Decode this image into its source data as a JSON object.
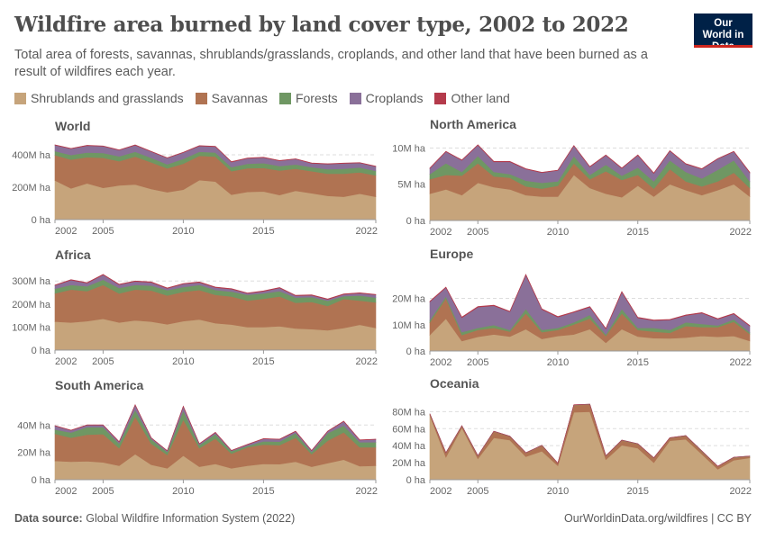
{
  "header": {
    "title": "Wildfire area burned by land cover type, 2002 to 2022",
    "subtitle": "Total area of forests, savannas, shrublands/grasslands, croplands, and other land that have been burned as a result of wildfires each year.",
    "logo_text": "Our World in Data"
  },
  "legend": [
    {
      "label": "Shrublands and grasslands",
      "color": "#c6a47b"
    },
    {
      "label": "Savannas",
      "color": "#b07352"
    },
    {
      "label": "Forests",
      "color": "#6f9763"
    },
    {
      "label": "Croplands",
      "color": "#8a7099"
    },
    {
      "label": "Other land",
      "color": "#b43a4b"
    }
  ],
  "footer": {
    "source_label": "Data source:",
    "source_text": "Global Wildfire Information System (2022)",
    "credit": "OurWorldinData.org/wildfires | CC BY"
  },
  "chart_data": [
    {
      "type": "area",
      "stacked": true,
      "title": "World",
      "x": [
        2002,
        2003,
        2004,
        2005,
        2006,
        2007,
        2008,
        2009,
        2010,
        2011,
        2012,
        2013,
        2014,
        2015,
        2016,
        2017,
        2018,
        2019,
        2020,
        2021,
        2022
      ],
      "xticks": [
        "2002",
        "2005",
        "2010",
        "2015",
        "2022"
      ],
      "yticks": [
        {
          "value": 0,
          "label": "0 ha"
        },
        {
          "value": 200,
          "label": "200M ha"
        },
        {
          "value": 400,
          "label": "400M ha"
        }
      ],
      "unit": "million hectares",
      "ylim": [
        0,
        467
      ],
      "grid": true,
      "series": [
        {
          "name": "Shrublands and grasslands",
          "values": [
            242,
            193,
            224,
            196,
            211,
            217,
            189,
            169,
            185,
            244,
            235,
            154,
            171,
            174,
            152,
            178,
            163,
            147,
            141,
            160,
            141
          ]
        },
        {
          "name": "Savannas",
          "values": [
            156,
            178,
            161,
            186,
            150,
            172,
            165,
            148,
            160,
            150,
            154,
            145,
            146,
            145,
            151,
            136,
            136,
            137,
            143,
            132,
            132
          ]
        },
        {
          "name": "Forests",
          "values": [
            25,
            28,
            30,
            30,
            30,
            30,
            28,
            25,
            30,
            25,
            25,
            25,
            28,
            30,
            28,
            27,
            25,
            28,
            30,
            30,
            28
          ]
        },
        {
          "name": "Croplands",
          "values": [
            37,
            39,
            42,
            41,
            38,
            41,
            38,
            38,
            39,
            36,
            37,
            32,
            33,
            34,
            32,
            33,
            24,
            31,
            33,
            28,
            27
          ]
        },
        {
          "name": "Other land",
          "values": [
            2,
            2,
            2,
            2,
            2,
            2,
            2,
            2,
            2,
            2,
            2,
            2,
            2,
            2,
            2,
            2,
            2,
            2,
            2,
            2,
            2
          ]
        }
      ]
    },
    {
      "type": "area",
      "stacked": true,
      "title": "North America",
      "x": [
        2002,
        2003,
        2004,
        2005,
        2006,
        2007,
        2008,
        2009,
        2010,
        2011,
        2012,
        2013,
        2014,
        2015,
        2016,
        2017,
        2018,
        2019,
        2020,
        2021,
        2022
      ],
      "xticks": [
        "2002",
        "2005",
        "2010",
        "2015",
        "2022"
      ],
      "yticks": [
        {
          "value": 0,
          "label": "0 ha"
        },
        {
          "value": 5,
          "label": "5M ha"
        },
        {
          "value": 10,
          "label": "10M ha"
        }
      ],
      "unit": "million hectares",
      "ylim": [
        0,
        10.8
      ],
      "grid": true,
      "series": [
        {
          "name": "Shrublands and grasslands",
          "values": [
            3.7,
            4.3,
            3.5,
            5.2,
            4.6,
            4.3,
            3.5,
            3.3,
            3.3,
            6.3,
            4.5,
            3.7,
            3.2,
            4.8,
            3.3,
            5.0,
            4.2,
            3.5,
            4.2,
            5.0,
            3.3
          ]
        },
        {
          "name": "Savannas",
          "values": [
            2.0,
            2.0,
            2.7,
            2.7,
            1.5,
            1.6,
            1.2,
            1.1,
            1.5,
            1.6,
            1.2,
            3.1,
            2.4,
            1.5,
            1.1,
            2.1,
            1.2,
            1.2,
            1.2,
            1.6,
            1.2
          ]
        },
        {
          "name": "Forests",
          "values": [
            0.7,
            1.6,
            0.5,
            1.0,
            0.6,
            0.5,
            0.8,
            0.8,
            0.6,
            1.0,
            0.6,
            0.9,
            0.6,
            1.0,
            1.0,
            1.2,
            1.3,
            1.1,
            1.6,
            1.7,
            0.9
          ]
        },
        {
          "name": "Croplands",
          "values": [
            0.8,
            1.6,
            1.6,
            1.5,
            1.4,
            1.7,
            1.6,
            1.4,
            1.5,
            1.4,
            1.1,
            1.3,
            1.0,
            1.7,
            1.1,
            1.3,
            1.1,
            1.3,
            1.5,
            1.2,
            1.2
          ]
        },
        {
          "name": "Other land",
          "values": [
            0.05,
            0.05,
            0.05,
            0.05,
            0.05,
            0.05,
            0.05,
            0.05,
            0.05,
            0.05,
            0.05,
            0.05,
            0.05,
            0.05,
            0.05,
            0.05,
            0.05,
            0.05,
            0.05,
            0.05,
            0.05
          ]
        }
      ]
    },
    {
      "type": "area",
      "stacked": true,
      "title": "Africa",
      "x": [
        2002,
        2003,
        2004,
        2005,
        2006,
        2007,
        2008,
        2009,
        2010,
        2011,
        2012,
        2013,
        2014,
        2015,
        2016,
        2017,
        2018,
        2019,
        2020,
        2021,
        2022
      ],
      "xticks": [
        "2002",
        "2005",
        "2010",
        "2015",
        "2022"
      ],
      "yticks": [
        {
          "value": 0,
          "label": "0 ha"
        },
        {
          "value": 100,
          "label": "100M ha"
        },
        {
          "value": 200,
          "label": "200M ha"
        },
        {
          "value": 300,
          "label": "300M ha"
        }
      ],
      "unit": "million hectares",
      "ylim": [
        0,
        336
      ],
      "grid": true,
      "series": [
        {
          "name": "Shrublands and grasslands",
          "values": [
            124,
            120,
            126,
            136,
            120,
            129,
            124,
            112,
            126,
            133,
            117,
            111,
            100,
            100,
            104,
            94,
            91,
            86,
            96,
            110,
            96
          ]
        },
        {
          "name": "Savannas",
          "values": [
            122,
            143,
            130,
            147,
            126,
            134,
            135,
            125,
            127,
            128,
            123,
            122,
            115,
            123,
            129,
            111,
            118,
            106,
            126,
            105,
            111
          ]
        },
        {
          "name": "Forests",
          "values": [
            21,
            20,
            21,
            23,
            24,
            20,
            21,
            23,
            21,
            22,
            21,
            21,
            25,
            23,
            23,
            23,
            21,
            22,
            12,
            22,
            21
          ]
        },
        {
          "name": "Croplands",
          "values": [
            14,
            21,
            14,
            21,
            14,
            15,
            14,
            8,
            13,
            11,
            11,
            11,
            6,
            9,
            14,
            8,
            8,
            6,
            8,
            10,
            12
          ]
        },
        {
          "name": "Other land",
          "values": [
            2,
            2,
            2,
            2,
            2,
            2,
            2,
            2,
            2,
            2,
            2,
            2,
            2,
            2,
            2,
            2,
            2,
            2,
            2,
            2,
            2
          ]
        }
      ]
    },
    {
      "type": "area",
      "stacked": true,
      "title": "Europe",
      "x": [
        2002,
        2003,
        2004,
        2005,
        2006,
        2007,
        2008,
        2009,
        2010,
        2011,
        2012,
        2013,
        2014,
        2015,
        2016,
        2017,
        2018,
        2019,
        2020,
        2021,
        2022
      ],
      "xticks": [
        "2002",
        "2005",
        "2010",
        "2015",
        "2022"
      ],
      "yticks": [
        {
          "value": 0,
          "label": "0 ha"
        },
        {
          "value": 10,
          "label": "10M ha"
        },
        {
          "value": 20,
          "label": "20M ha"
        }
      ],
      "unit": "million hectares",
      "ylim": [
        0,
        30.1
      ],
      "grid": true,
      "series": [
        {
          "name": "Shrublands and grasslands",
          "values": [
            6.1,
            12.3,
            3.8,
            5.4,
            6.3,
            5.5,
            8.3,
            4.6,
            5.7,
            6.3,
            8.3,
            3.1,
            8.3,
            5.5,
            4.9,
            4.8,
            5.1,
            5.7,
            5.4,
            5.7,
            3.8
          ]
        },
        {
          "name": "Savannas",
          "values": [
            4.8,
            7.7,
            2.3,
            2.6,
            2.5,
            1.9,
            6.0,
            2.6,
            2.3,
            3.8,
            4.0,
            2.6,
            6.0,
            2.5,
            2.5,
            2.1,
            4.4,
            3.4,
            3.7,
            5.4,
            2.7
          ]
        },
        {
          "name": "Forests",
          "values": [
            0.8,
            0.8,
            1.1,
            0.8,
            1.1,
            0.6,
            1.7,
            0.8,
            0.8,
            0.8,
            1.4,
            0.6,
            1.7,
            0.8,
            1.4,
            1.1,
            1.4,
            1.2,
            0.6,
            0.9,
            0.6
          ]
        },
        {
          "name": "Croplands",
          "values": [
            7.0,
            3.3,
            5.5,
            7.9,
            7.3,
            6.9,
            12.9,
            7.8,
            4.1,
            3.8,
            3.0,
            2.1,
            6.4,
            3.8,
            2.8,
            3.8,
            2.6,
            4.1,
            2.4,
            2.1,
            2.4
          ]
        },
        {
          "name": "Other land",
          "values": [
            0.2,
            0.2,
            0.2,
            0.2,
            0.2,
            0.2,
            0.2,
            0.2,
            0.2,
            0.2,
            0.2,
            0.2,
            0.2,
            0.2,
            0.2,
            0.2,
            0.2,
            0.2,
            0.2,
            0.2,
            0.2
          ]
        }
      ]
    },
    {
      "type": "area",
      "stacked": true,
      "title": "South America",
      "x": [
        2002,
        2003,
        2004,
        2005,
        2006,
        2007,
        2008,
        2009,
        2010,
        2011,
        2012,
        2013,
        2014,
        2015,
        2016,
        2017,
        2018,
        2019,
        2020,
        2021,
        2022
      ],
      "xticks": [
        "2002",
        "2005",
        "2010",
        "2015",
        "2022"
      ],
      "yticks": [
        {
          "value": 0,
          "label": "0 ha"
        },
        {
          "value": 20,
          "label": "20M ha"
        },
        {
          "value": 40,
          "label": "40M ha"
        }
      ],
      "unit": "million hectares",
      "ylim": [
        0,
        56
      ],
      "grid": true,
      "series": [
        {
          "name": "Shrublands and grasslands",
          "values": [
            13.8,
            13.2,
            13.6,
            12.7,
            10.3,
            18.7,
            11.0,
            8.4,
            17.6,
            9.5,
            11.6,
            8.4,
            10.3,
            11.6,
            11.4,
            13.2,
            9.5,
            12.1,
            14.7,
            9.9,
            10.3
          ]
        },
        {
          "name": "Savannas",
          "values": [
            19.8,
            17.6,
            19.4,
            20.7,
            12.8,
            27.5,
            15.4,
            9.8,
            26.4,
            13.6,
            18.5,
            10.7,
            13.4,
            14.1,
            13.9,
            17.6,
            9.2,
            16.5,
            20.0,
            13.8,
            13.4
          ]
        },
        {
          "name": "Forests",
          "values": [
            3.1,
            3.7,
            5.5,
            5.1,
            3.3,
            5.0,
            3.3,
            2.0,
            6.5,
            2.2,
            3.3,
            1.8,
            1.1,
            2.4,
            2.6,
            3.3,
            1.5,
            5.5,
            4.9,
            3.8,
            3.8
          ]
        },
        {
          "name": "Croplands",
          "values": [
            2.7,
            1.6,
            1.5,
            1.5,
            1.3,
            3.5,
            0.9,
            0.9,
            3.1,
            0.9,
            1.1,
            0.4,
            0.9,
            1.8,
            1.6,
            1.3,
            1.1,
            1.3,
            3.1,
            1.5,
            2.0
          ]
        },
        {
          "name": "Other land",
          "values": [
            0.2,
            0.2,
            0.2,
            0.2,
            0.2,
            0.2,
            0.2,
            0.2,
            0.2,
            0.2,
            0.2,
            0.2,
            0.2,
            0.2,
            0.2,
            0.2,
            0.2,
            0.2,
            0.2,
            0.2,
            0.2
          ]
        }
      ]
    },
    {
      "type": "area",
      "stacked": true,
      "title": "Oceania",
      "x": [
        2002,
        2003,
        2004,
        2005,
        2006,
        2007,
        2008,
        2009,
        2010,
        2011,
        2012,
        2013,
        2014,
        2015,
        2016,
        2017,
        2018,
        2019,
        2020,
        2021,
        2022
      ],
      "xticks": [
        "2002",
        "2005",
        "2010",
        "2015",
        "2022"
      ],
      "yticks": [
        {
          "value": 0,
          "label": "0 ha"
        },
        {
          "value": 20,
          "label": "20M ha"
        },
        {
          "value": 40,
          "label": "40M ha"
        },
        {
          "value": 60,
          "label": "60M ha"
        },
        {
          "value": 80,
          "label": "80M ha"
        }
      ],
      "unit": "million hectares",
      "ylim": [
        0,
        92
      ],
      "grid": true,
      "series": [
        {
          "name": "Shrublands and grasslands",
          "values": [
            75.7,
            26.4,
            60.9,
            24.6,
            49.3,
            46.5,
            27.1,
            33.5,
            16.5,
            79.2,
            79.9,
            23.6,
            40.5,
            37.0,
            20.1,
            45.8,
            47.5,
            29.9,
            12.3,
            22.9,
            25.7
          ]
        },
        {
          "name": "Savannas",
          "values": [
            1.5,
            5.0,
            2.2,
            3.3,
            7.4,
            4.3,
            4.3,
            6.7,
            2.6,
            8.5,
            8.5,
            4.3,
            5.7,
            5.0,
            5.3,
            3.2,
            4.0,
            3.3,
            3.2,
            3.2,
            1.8
          ]
        },
        {
          "name": "Forests",
          "values": [
            0.2,
            0.2,
            0.2,
            0.2,
            0.2,
            0.2,
            0.2,
            0.2,
            0.2,
            0.2,
            0.2,
            0.2,
            0.2,
            0.2,
            0.2,
            0.2,
            0.2,
            0.5,
            0.2,
            0.2,
            0.2
          ]
        },
        {
          "name": "Croplands",
          "values": [
            0.1,
            0.1,
            0.1,
            0.1,
            0.1,
            0.1,
            0.1,
            0.1,
            0.1,
            0.1,
            0.1,
            0.1,
            0.1,
            0.1,
            0.1,
            0.1,
            0.1,
            0.1,
            0.1,
            0.1,
            0.1
          ]
        },
        {
          "name": "Other land",
          "values": [
            0.05,
            0.05,
            0.05,
            0.05,
            0.05,
            0.05,
            0.05,
            0.05,
            0.05,
            0.05,
            0.05,
            0.05,
            0.05,
            0.05,
            0.05,
            0.05,
            0.05,
            0.05,
            0.05,
            0.05,
            0.05
          ]
        }
      ]
    }
  ]
}
